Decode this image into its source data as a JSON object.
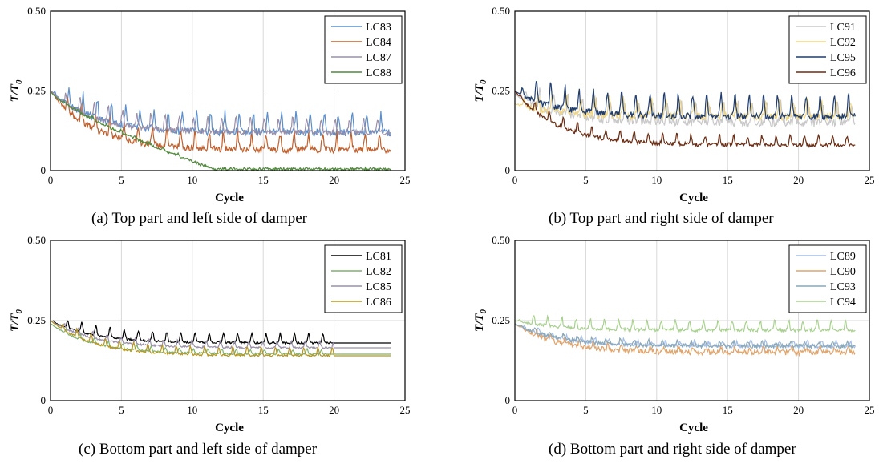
{
  "figure": {
    "panels": [
      {
        "caption": "(a) Top part and left side of damper"
      },
      {
        "caption": "(b) Top part and right side of damper"
      },
      {
        "caption": "(c) Bottom part and left side of damper"
      },
      {
        "caption": "(d) Bottom part and right side of damper"
      }
    ]
  },
  "chart_data": [
    {
      "type": "line",
      "id": "a",
      "title": "(a) Top part and left side of damper",
      "xlabel": "Cycle",
      "ylabel": "T/T0",
      "xlim": [
        0,
        25
      ],
      "ylim": [
        0,
        0.5
      ],
      "xticks": [
        "0",
        "5",
        "10",
        "15",
        "20",
        "25"
      ],
      "yticks": [
        "0",
        "0.25",
        "0.50"
      ],
      "grid": true,
      "legend_position": "top-right",
      "series": [
        {
          "name": "LC83",
          "color": "#5b8fcb",
          "start": 0.25,
          "end": 0.12,
          "shape": "decay",
          "peak": 0.06,
          "noise": 0.012,
          "xmax": 24.0
        },
        {
          "name": "LC84",
          "color": "#c0602e",
          "start": 0.25,
          "end": 0.065,
          "shape": "decay",
          "peak": 0.05,
          "noise": 0.01,
          "xmax": 24.0
        },
        {
          "name": "LC87",
          "color": "#9a8fa8",
          "start": 0.25,
          "end": 0.12,
          "shape": "decay",
          "peak": 0.045,
          "noise": 0.008,
          "xmax": 24.0
        },
        {
          "name": "LC88",
          "color": "#4f8a3a",
          "start": 0.25,
          "end": 0.005,
          "shape": "drop",
          "peak": 0.008,
          "noise": 0.004,
          "xmax": 24.0
        }
      ]
    },
    {
      "type": "line",
      "id": "b",
      "title": "(b) Top part and right side of damper",
      "xlabel": "Cycle",
      "ylabel": "T/T0",
      "xlim": [
        0,
        25
      ],
      "ylim": [
        0,
        0.5
      ],
      "xticks": [
        "0",
        "5",
        "10",
        "15",
        "20",
        "25"
      ],
      "yticks": [
        "0",
        "0.25",
        "0.50"
      ],
      "grid": true,
      "legend_position": "top-right",
      "series": [
        {
          "name": "LC91",
          "color": "#c8c8c8",
          "start": 0.24,
          "end": 0.15,
          "shape": "decay",
          "peak": 0.06,
          "noise": 0.012,
          "xmax": 24.0
        },
        {
          "name": "LC92",
          "color": "#f2d580",
          "start": 0.21,
          "end": 0.17,
          "shape": "decay",
          "peak": 0.05,
          "noise": 0.012,
          "xmax": 24.0
        },
        {
          "name": "LC95",
          "color": "#1f3d6e",
          "start": 0.25,
          "end": 0.17,
          "shape": "decay",
          "peak": 0.07,
          "noise": 0.01,
          "xmax": 24.0
        },
        {
          "name": "LC96",
          "color": "#6b2c12",
          "start": 0.25,
          "end": 0.08,
          "shape": "decay",
          "peak": 0.03,
          "noise": 0.006,
          "xmax": 24.0
        }
      ]
    },
    {
      "type": "line",
      "id": "c",
      "title": "(c) Bottom part and left side of damper",
      "xlabel": "Cycle",
      "ylabel": "T/T0",
      "xlim": [
        0,
        25
      ],
      "ylim": [
        0,
        0.5
      ],
      "xticks": [
        "0",
        "5",
        "10",
        "15",
        "20",
        "25"
      ],
      "yticks": [
        "0",
        "0.25",
        "0.50"
      ],
      "grid": true,
      "legend_position": "top-right",
      "series": [
        {
          "name": "LC81",
          "color": "#000000",
          "start": 0.25,
          "end": 0.18,
          "shape": "decay",
          "peak": 0.03,
          "noise": 0.003,
          "xmax": 20.0,
          "tail": 0.18
        },
        {
          "name": "LC82",
          "color": "#7fb26b",
          "start": 0.24,
          "end": 0.145,
          "shape": "decay",
          "peak": 0.015,
          "noise": 0.003,
          "xmax": 19.5,
          "tail": 0.145
        },
        {
          "name": "LC85",
          "color": "#9a8fa8",
          "start": 0.25,
          "end": 0.165,
          "shape": "decay",
          "peak": 0.02,
          "noise": 0.003,
          "xmax": 20.0,
          "tail": 0.165
        },
        {
          "name": "LC86",
          "color": "#b8961e",
          "start": 0.25,
          "end": 0.14,
          "shape": "decay",
          "peak": 0.025,
          "noise": 0.003,
          "xmax": 20.0,
          "tail": 0.14
        }
      ]
    },
    {
      "type": "line",
      "id": "d",
      "title": "(d) Bottom part and right side of damper",
      "xlabel": "Cycle",
      "ylabel": "T/T0",
      "xlim": [
        0,
        25
      ],
      "ylim": [
        0,
        0.5
      ],
      "xticks": [
        "0",
        "5",
        "10",
        "15",
        "20",
        "25"
      ],
      "yticks": [
        "0",
        "0.25",
        "0.50"
      ],
      "grid": true,
      "legend_position": "top-right",
      "series": [
        {
          "name": "LC89",
          "color": "#a3bde6",
          "start": 0.24,
          "end": 0.17,
          "shape": "decay",
          "peak": 0.015,
          "noise": 0.006,
          "xmax": 24.0
        },
        {
          "name": "LC90",
          "color": "#e0a46b",
          "start": 0.24,
          "end": 0.15,
          "shape": "decay",
          "peak": 0.015,
          "noise": 0.008,
          "xmax": 24.0
        },
        {
          "name": "LC93",
          "color": "#8aa8b8",
          "start": 0.24,
          "end": 0.17,
          "shape": "decay",
          "peak": 0.015,
          "noise": 0.006,
          "xmax": 24.0
        },
        {
          "name": "LC94",
          "color": "#a8d08f",
          "start": 0.25,
          "end": 0.22,
          "shape": "decay",
          "peak": 0.03,
          "noise": 0.005,
          "xmax": 24.0
        }
      ]
    }
  ]
}
